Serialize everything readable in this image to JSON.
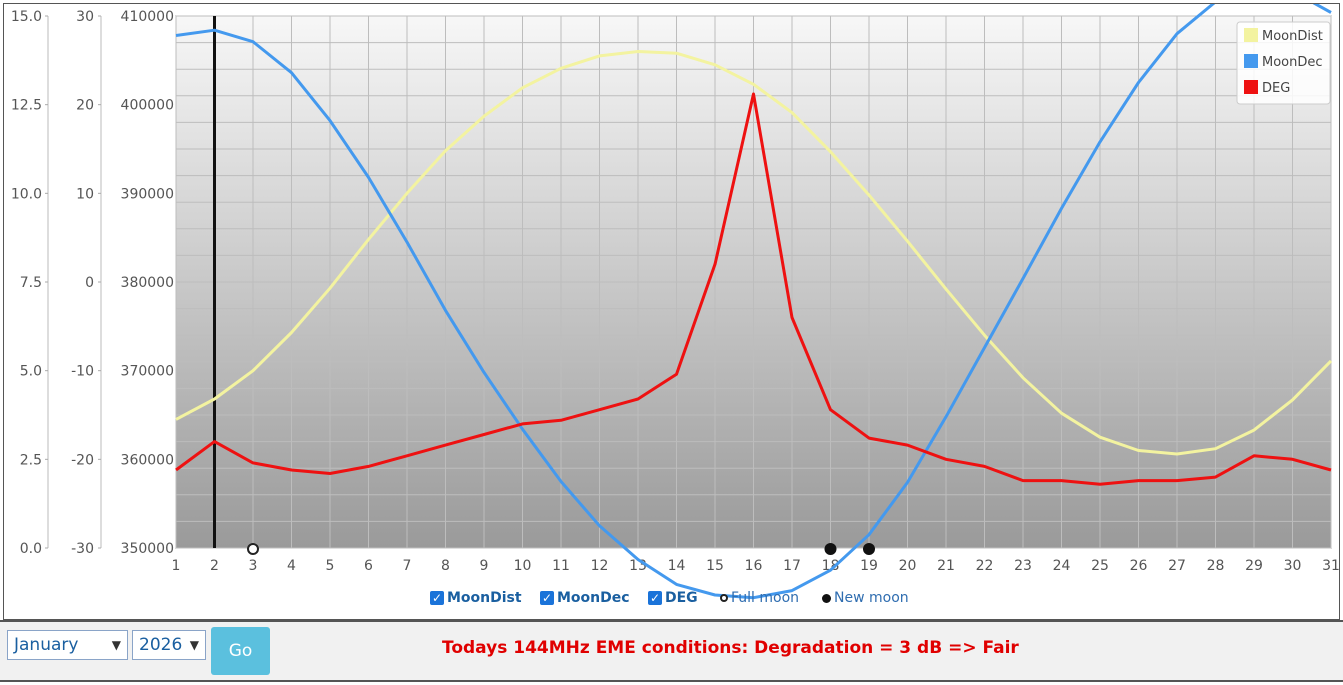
{
  "chart_data": {
    "type": "line",
    "x": [
      1,
      2,
      3,
      4,
      5,
      6,
      7,
      8,
      9,
      10,
      11,
      12,
      13,
      14,
      15,
      16,
      17,
      18,
      19,
      20,
      21,
      22,
      23,
      24,
      25,
      26,
      27,
      28,
      29,
      30,
      31
    ],
    "series": [
      {
        "name": "MoonDist",
        "color": "#f3f3a0",
        "axis": "dist",
        "values": [
          364500,
          366800,
          370000,
          374300,
          379300,
          384800,
          390000,
          394800,
          398700,
          401900,
          404100,
          405500,
          406000,
          405800,
          404500,
          402300,
          399100,
          394700,
          389800,
          384600,
          379200,
          374000,
          369200,
          365200,
          362500,
          361000,
          360600,
          361200,
          363300,
          366700,
          371100
        ]
      },
      {
        "name": "MoonDec",
        "color": "#4499ee",
        "axis": "dec",
        "values": [
          27.8,
          28.4,
          27.1,
          23.6,
          18.2,
          11.8,
          4.5,
          -3.2,
          -10.2,
          -16.6,
          -22.5,
          -27.5,
          -31.3,
          -34.1,
          -35.3,
          -35.6,
          -34.8,
          -32.5,
          -28.5,
          -22.6,
          -15.2,
          -7.4,
          0.4,
          8.3,
          15.8,
          22.5,
          28.0,
          31.6,
          33.2,
          32.8,
          30.4
        ]
      },
      {
        "name": "DEG",
        "color": "#ee1111",
        "axis": "deg",
        "values": [
          2.2,
          3.0,
          2.4,
          2.2,
          2.1,
          2.3,
          2.6,
          2.9,
          3.2,
          3.5,
          3.6,
          3.9,
          4.2,
          4.9,
          8.0,
          12.8,
          6.5,
          3.9,
          3.1,
          2.9,
          2.5,
          2.3,
          1.9,
          1.9,
          1.8,
          1.9,
          1.9,
          2.0,
          2.6,
          2.5,
          2.2
        ]
      }
    ],
    "axes": {
      "deg": {
        "range": [
          0,
          15
        ],
        "ticks": [
          "0.0",
          "2.5",
          "5.0",
          "7.5",
          "10.0",
          "12.5",
          "15.0"
        ],
        "tick_values": [
          0,
          2.5,
          5,
          7.5,
          10,
          12.5,
          15
        ]
      },
      "dec": {
        "range": [
          -30,
          30
        ],
        "ticks": [
          "-30",
          "-20",
          "-10",
          "0",
          "10",
          "20",
          "30"
        ],
        "tick_values": [
          -30,
          -20,
          -10,
          0,
          10,
          20,
          30
        ]
      },
      "dist": {
        "range": [
          350000,
          410000
        ],
        "ticks": [
          "350000",
          "360000",
          "370000",
          "380000",
          "390000",
          "400000",
          "410000"
        ],
        "tick_values": [
          350000,
          360000,
          370000,
          380000,
          390000,
          400000,
          410000
        ]
      }
    },
    "x_ticks": [
      "1",
      "2",
      "3",
      "4",
      "5",
      "6",
      "7",
      "8",
      "9",
      "10",
      "11",
      "12",
      "13",
      "14",
      "15",
      "16",
      "17",
      "18",
      "19",
      "20",
      "21",
      "22",
      "23",
      "24",
      "25",
      "26",
      "27",
      "28",
      "29",
      "30",
      "31"
    ],
    "current_day": 2,
    "full_moon_days": [
      3
    ],
    "new_moon_days": [
      18,
      19
    ],
    "legend": [
      "MoonDist",
      "MoonDec",
      "DEG"
    ],
    "legend_position": "top-right",
    "grid": true
  },
  "controls": {
    "checkboxes": [
      {
        "label": "MoonDist",
        "checked": true
      },
      {
        "label": "MoonDec",
        "checked": true
      },
      {
        "label": "DEG",
        "checked": true
      }
    ],
    "full_moon_label": "Full moon",
    "new_moon_label": "New moon"
  },
  "bottom": {
    "month": "January",
    "year": "2026",
    "go_label": "Go",
    "conditions": "Todays 144MHz EME conditions: Degradation = 3 dB => Fair"
  }
}
